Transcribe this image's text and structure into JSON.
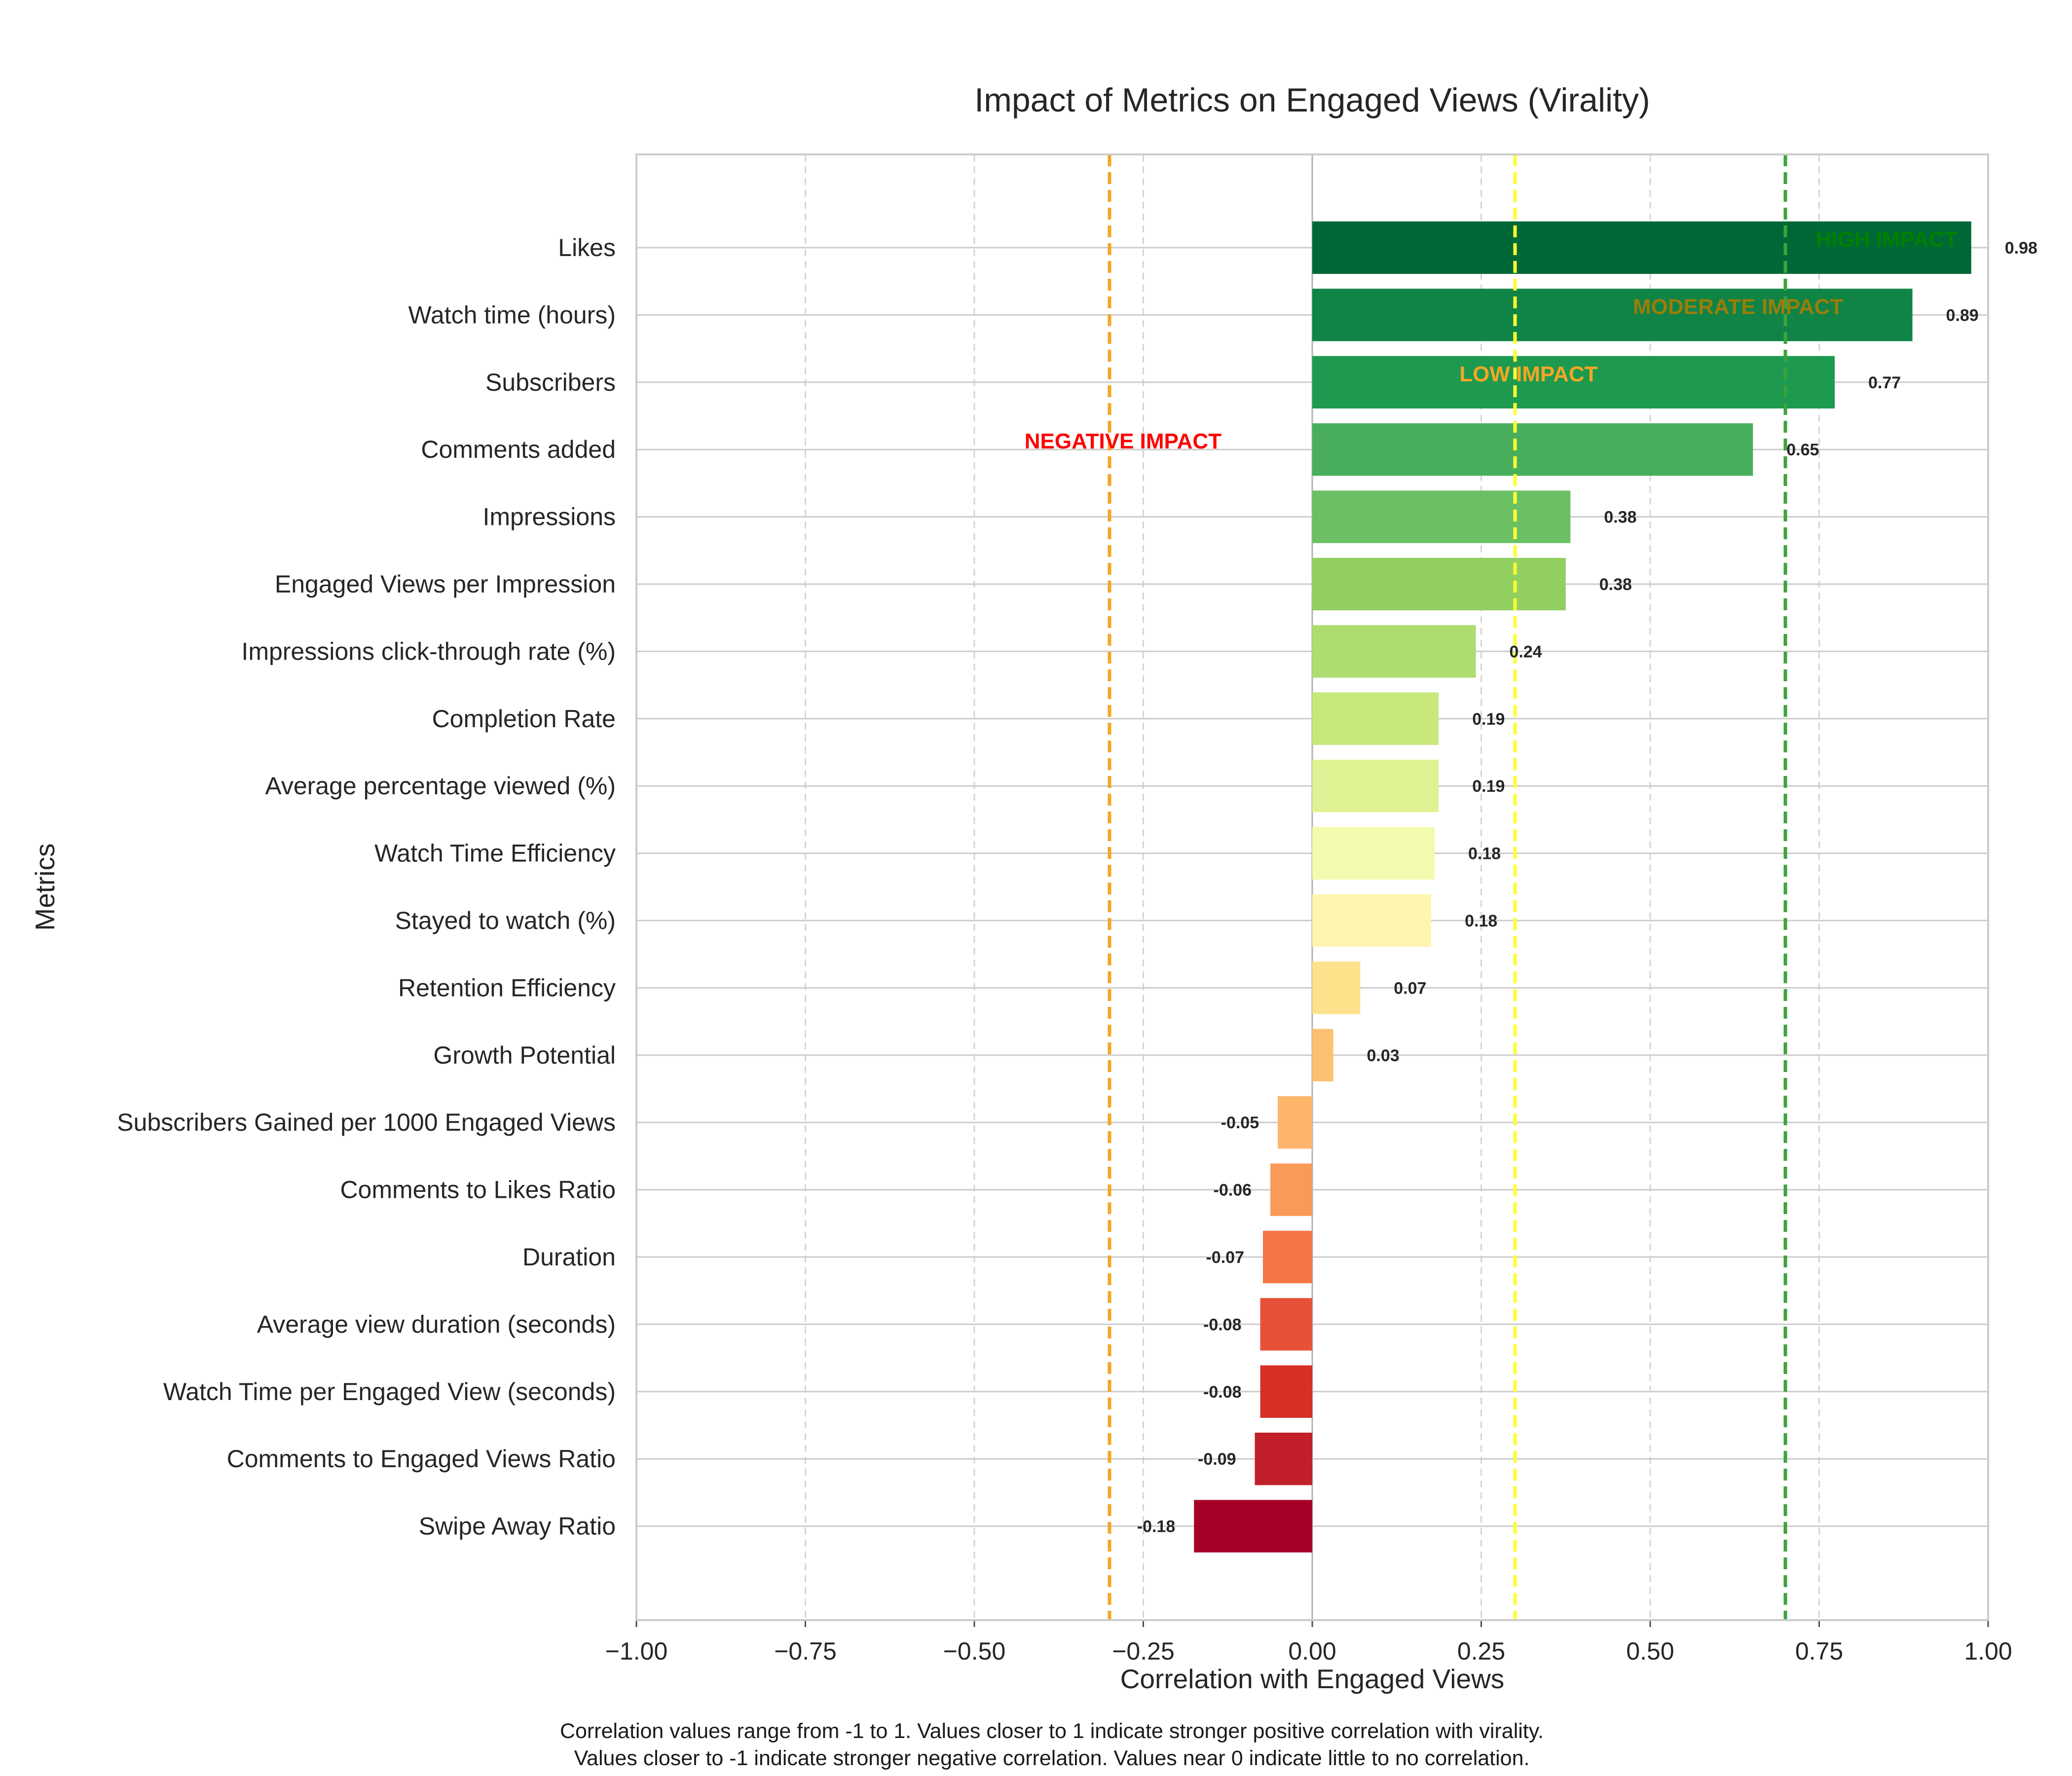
{
  "chart_data": {
    "type": "bar",
    "orientation": "horizontal",
    "title": "Impact of Metrics on Engaged Views (Virality)",
    "xlabel": "Correlation with Engaged Views",
    "ylabel": "Metrics",
    "xlim": [
      -1.0,
      1.0
    ],
    "xticks": [
      "−1.00",
      "−0.75",
      "−0.50",
      "−0.25",
      "0.00",
      "0.25",
      "0.50",
      "0.75",
      "1.00"
    ],
    "grid": true,
    "categories": [
      "Likes",
      "Watch time (hours)",
      "Subscribers",
      "Comments added",
      "Impressions",
      "Engaged Views per Impression",
      "Impressions click-through rate (%)",
      "Completion Rate",
      "Average percentage viewed (%)",
      "Watch Time Efficiency",
      "Stayed to watch (%)",
      "Retention Efficiency",
      "Growth Potential",
      "Subscribers Gained per 1000 Engaged Views",
      "Comments to Likes Ratio",
      "Duration",
      "Average view duration (seconds)",
      "Watch Time per Engaged View (seconds)",
      "Comments to Engaged Views Ratio",
      "Swipe Away Ratio"
    ],
    "values": [
      0.975,
      0.888,
      0.773,
      0.652,
      0.382,
      0.375,
      0.242,
      0.187,
      0.187,
      0.181,
      0.176,
      0.071,
      0.031,
      -0.051,
      -0.062,
      -0.073,
      -0.077,
      -0.077,
      -0.085,
      -0.175
    ],
    "value_labels": [
      "0.98",
      "0.89",
      "0.77",
      "0.65",
      "0.38",
      "0.38",
      "0.24",
      "0.19",
      "0.19",
      "0.18",
      "0.18",
      "0.07",
      "0.03",
      "-0.05",
      "-0.06",
      "-0.07",
      "-0.08",
      "-0.08",
      "-0.09",
      "-0.18"
    ],
    "bar_colors": [
      "#006837",
      "#0f8446",
      "#1d9a4f",
      "#48ae5c",
      "#6bc064",
      "#91cf61",
      "#addc6f",
      "#c7e87b",
      "#dff293",
      "#f2faae",
      "#fff5b0",
      "#fee28b",
      "#fdc070",
      "#fdb56c",
      "#fa9a59",
      "#f57547",
      "#e75137",
      "#d73027",
      "#c1202a",
      "#a50026"
    ],
    "thresholds": [
      {
        "value": 0.7,
        "color": "#3ca33c",
        "label": "HIGH IMPACT",
        "label_color": "#008000"
      },
      {
        "value": 0.5,
        "color": null,
        "label": "MODERATE IMPACT",
        "label_color": "#9a7d0a"
      },
      {
        "value": 0.3,
        "color": "#ffff33",
        "label": "LOW IMPACT",
        "label_color": "#f5a623"
      },
      {
        "value": -0.3,
        "color": "#f5a623",
        "label": "NEGATIVE IMPACT",
        "label_color": "#ff0000"
      }
    ]
  },
  "caption": {
    "line1": "Correlation values range from -1 to 1. Values closer to 1 indicate stronger positive correlation with virality.",
    "line2": "Values closer to -1 indicate stronger negative correlation. Values near 0 indicate little to no correlation."
  }
}
